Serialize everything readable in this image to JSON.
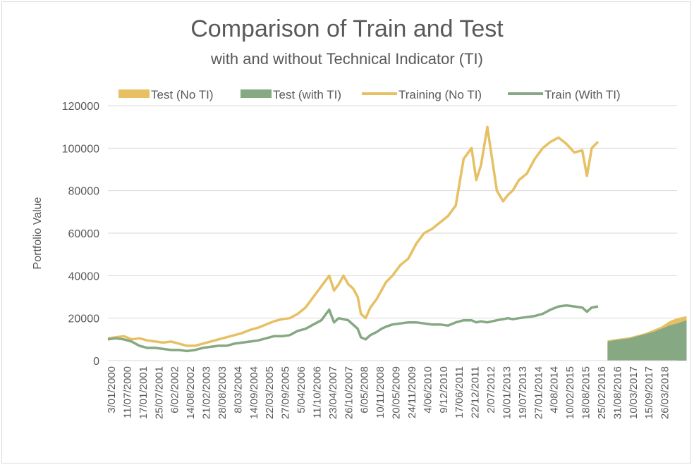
{
  "chart_data": {
    "type": "line",
    "title": "Comparison of Train and Test",
    "subtitle": "with and without Technical Indicator (TI)",
    "xlabel": "",
    "ylabel": "Portfolio Value",
    "ylim": [
      0,
      120000
    ],
    "yticks": [
      "0",
      "20000",
      "40000",
      "60000",
      "80000",
      "100000",
      "120000"
    ],
    "grid": true,
    "legend_position": "top",
    "xtick_labels": [
      "3/01/2000",
      "11/07/2000",
      "17/01/2001",
      "25/07/2001",
      "6/02/2002",
      "14/08/2002",
      "21/02/2003",
      "28/08/2003",
      "8/03/2004",
      "14/09/2004",
      "22/03/2005",
      "27/09/2005",
      "5/04/2006",
      "11/10/2006",
      "23/04/2007",
      "26/10/2007",
      "6/05/2008",
      "10/11/2008",
      "20/05/2009",
      "24/11/2009",
      "4/06/2010",
      "9/12/2010",
      "17/06/2011",
      "22/12/2011",
      "2/07/2012",
      "10/01/2013",
      "19/07/2013",
      "27/01/2014",
      "4/08/2014",
      "10/02/2015",
      "18/08/2015",
      "25/02/2016",
      "31/08/2016",
      "10/03/2017",
      "15/09/2017",
      "26/03/2018"
    ],
    "legend": [
      {
        "name": "Test (No TI)",
        "kind": "area",
        "color": "#e6c063"
      },
      {
        "name": "Test (with TI)",
        "kind": "area",
        "color": "#86a883"
      },
      {
        "name": "Training (No TI)",
        "kind": "line",
        "color": "#e6c063"
      },
      {
        "name": "Train (With TI)",
        "kind": "line",
        "color": "#86a883"
      }
    ],
    "series": [
      {
        "name": "Training (No TI)",
        "kind": "line",
        "color": "#e6c063",
        "x": [
          0,
          0.5,
          1,
          1.5,
          2,
          2.5,
          3,
          3.5,
          4,
          4.5,
          5,
          5.5,
          6,
          6.5,
          7,
          7.5,
          8,
          8.5,
          9,
          9.5,
          10,
          10.5,
          11,
          11.5,
          12,
          12.5,
          13,
          13.5,
          14,
          14.3,
          14.6,
          14.9,
          15.2,
          15.5,
          15.8,
          16,
          16.3,
          16.6,
          17,
          17.3,
          17.6,
          18,
          18.5,
          19,
          19.5,
          20,
          20.5,
          21,
          21.5,
          22,
          22.5,
          23,
          23.3,
          23.6,
          24,
          24.3,
          24.6,
          25,
          25.3,
          25.6,
          26,
          26.5,
          27,
          27.5,
          28,
          28.5,
          29,
          29.5,
          30,
          30.3,
          30.6,
          31
        ],
        "y": [
          10500,
          11000,
          11500,
          10000,
          10500,
          9500,
          9000,
          8500,
          9000,
          8000,
          7000,
          7000,
          8000,
          9000,
          10000,
          11000,
          12000,
          13000,
          14500,
          15500,
          17000,
          18500,
          19500,
          20000,
          22000,
          25000,
          30000,
          35000,
          40000,
          33000,
          36000,
          40000,
          36000,
          34000,
          30000,
          22000,
          20000,
          25000,
          29000,
          33000,
          37000,
          40000,
          45000,
          48000,
          55000,
          60000,
          62000,
          65000,
          68000,
          73000,
          95000,
          100000,
          85000,
          92000,
          110000,
          95000,
          80000,
          75000,
          78000,
          80000,
          85000,
          88000,
          95000,
          100000,
          103000,
          105000,
          102000,
          98000,
          99000,
          87000,
          100000,
          103000
        ]
      },
      {
        "name": "Train (With TI)",
        "kind": "line",
        "color": "#86a883",
        "x": [
          0,
          0.5,
          1,
          1.5,
          2,
          2.5,
          3,
          3.5,
          4,
          4.5,
          5,
          5.5,
          6,
          6.5,
          7,
          7.5,
          8,
          8.5,
          9,
          9.5,
          10,
          10.5,
          11,
          11.5,
          12,
          12.5,
          13,
          13.5,
          14,
          14.3,
          14.6,
          14.9,
          15.2,
          15.5,
          15.8,
          16,
          16.3,
          16.6,
          17,
          17.3,
          17.6,
          18,
          18.5,
          19,
          19.5,
          20,
          20.5,
          21,
          21.5,
          22,
          22.5,
          23,
          23.3,
          23.6,
          24,
          24.3,
          24.6,
          25,
          25.3,
          25.6,
          26,
          26.5,
          27,
          27.5,
          28,
          28.5,
          29,
          29.5,
          30,
          30.3,
          30.6,
          31
        ],
        "y": [
          10000,
          10500,
          10000,
          9000,
          7000,
          6000,
          6000,
          5500,
          5000,
          5000,
          4500,
          5000,
          6000,
          6500,
          7000,
          7000,
          8000,
          8500,
          9000,
          9500,
          10500,
          11500,
          11500,
          12000,
          14000,
          15000,
          17000,
          19000,
          24000,
          18000,
          20000,
          19500,
          19000,
          17000,
          15000,
          11000,
          10000,
          12000,
          13500,
          15000,
          16000,
          17000,
          17500,
          18000,
          18000,
          17500,
          17000,
          17000,
          16500,
          18000,
          19000,
          19000,
          18000,
          18500,
          18000,
          18500,
          19000,
          19500,
          20000,
          19500,
          20000,
          20500,
          21000,
          22000,
          24000,
          25500,
          26000,
          25500,
          25000,
          23000,
          25000,
          25500
        ]
      },
      {
        "name": "Test (No TI)",
        "kind": "area",
        "color": "#e6c063",
        "x": [
          31.6,
          32,
          32.5,
          33,
          33.5,
          34,
          34.5,
          35,
          35.5,
          36,
          36.6
        ],
        "y": [
          9500,
          10000,
          10500,
          11000,
          12000,
          13000,
          14500,
          16000,
          18500,
          20000,
          21000
        ]
      },
      {
        "name": "Test (with TI)",
        "kind": "area",
        "color": "#86a883",
        "x": [
          31.6,
          32,
          32.5,
          33,
          33.5,
          34,
          34.5,
          35,
          35.5,
          36,
          36.6
        ],
        "y": [
          9000,
          9500,
          10000,
          10500,
          11500,
          12500,
          13500,
          15000,
          16500,
          17500,
          19000
        ]
      }
    ]
  }
}
